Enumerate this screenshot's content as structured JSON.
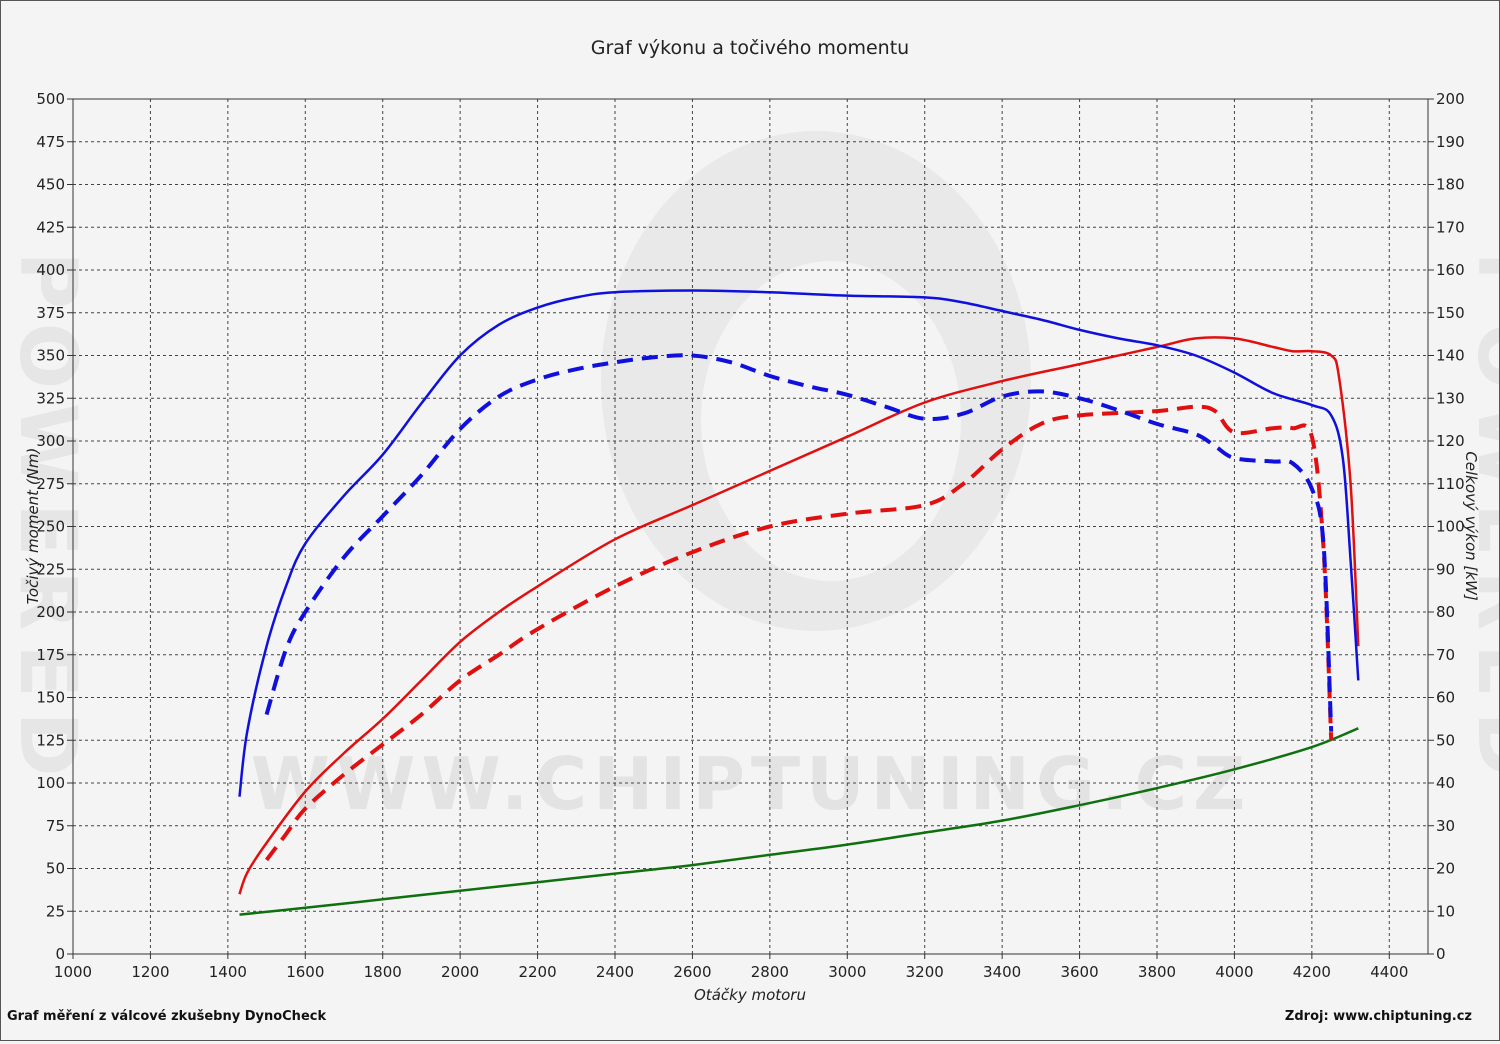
{
  "chart_data": {
    "type": "line",
    "title": "Graf výkonu a točivého momentu",
    "xlabel": "Otáčky motoru",
    "ylabel_left": "Točivý moment (Nm)",
    "ylabel_right": "Celkový výkon [kW]",
    "xlim": [
      1000,
      4500
    ],
    "ylim_left": [
      0,
      500
    ],
    "ylim_right": [
      0,
      200
    ],
    "x_ticks": [
      1000,
      1200,
      1400,
      1600,
      1800,
      2000,
      2200,
      2400,
      2600,
      2800,
      3000,
      3200,
      3400,
      3600,
      3800,
      4000,
      4200,
      4400
    ],
    "y_left_ticks": [
      0,
      25,
      50,
      75,
      100,
      125,
      150,
      175,
      200,
      225,
      250,
      275,
      300,
      325,
      350,
      375,
      400,
      425,
      450,
      475,
      500
    ],
    "y_right_ticks": [
      0,
      10,
      20,
      30,
      40,
      50,
      60,
      70,
      80,
      90,
      100,
      110,
      120,
      130,
      140,
      150,
      160,
      170,
      180,
      190,
      200
    ],
    "grid": true,
    "colors": {
      "torque": "#1010dd",
      "power": "#e01010",
      "losses": "#107010"
    },
    "series": [
      {
        "key": "torque_tuned",
        "axis": "left",
        "color": "#1010dd",
        "dash": "none",
        "points": [
          [
            1430,
            92
          ],
          [
            1450,
            130
          ],
          [
            1500,
            180
          ],
          [
            1550,
            215
          ],
          [
            1600,
            240
          ],
          [
            1700,
            268
          ],
          [
            1800,
            292
          ],
          [
            1900,
            322
          ],
          [
            2000,
            350
          ],
          [
            2100,
            368
          ],
          [
            2200,
            378
          ],
          [
            2300,
            384
          ],
          [
            2400,
            387
          ],
          [
            2600,
            388
          ],
          [
            2800,
            387
          ],
          [
            3000,
            385
          ],
          [
            3200,
            384
          ],
          [
            3300,
            381
          ],
          [
            3400,
            376
          ],
          [
            3500,
            371
          ],
          [
            3600,
            365
          ],
          [
            3700,
            360
          ],
          [
            3800,
            356
          ],
          [
            3900,
            350
          ],
          [
            4000,
            340
          ],
          [
            4100,
            328
          ],
          [
            4200,
            321
          ],
          [
            4250,
            315
          ],
          [
            4280,
            290
          ],
          [
            4300,
            230
          ],
          [
            4320,
            160
          ]
        ]
      },
      {
        "key": "torque_stock",
        "axis": "left",
        "color": "#1010dd",
        "dash": "dashed",
        "points": [
          [
            1500,
            140
          ],
          [
            1550,
            178
          ],
          [
            1600,
            200
          ],
          [
            1700,
            232
          ],
          [
            1800,
            256
          ],
          [
            1900,
            280
          ],
          [
            2000,
            307
          ],
          [
            2100,
            326
          ],
          [
            2200,
            336
          ],
          [
            2300,
            342
          ],
          [
            2400,
            346
          ],
          [
            2500,
            349
          ],
          [
            2600,
            350
          ],
          [
            2700,
            346
          ],
          [
            2800,
            338
          ],
          [
            2900,
            332
          ],
          [
            3000,
            327
          ],
          [
            3100,
            320
          ],
          [
            3200,
            313
          ],
          [
            3300,
            316
          ],
          [
            3400,
            326
          ],
          [
            3500,
            329
          ],
          [
            3600,
            325
          ],
          [
            3700,
            318
          ],
          [
            3800,
            310
          ],
          [
            3900,
            304
          ],
          [
            3950,
            297
          ],
          [
            4000,
            290
          ],
          [
            4100,
            288
          ],
          [
            4150,
            287
          ],
          [
            4200,
            272
          ],
          [
            4230,
            240
          ],
          [
            4250,
            130
          ]
        ]
      },
      {
        "key": "power_tuned",
        "axis": "right",
        "color": "#e01010",
        "dash": "none",
        "points": [
          [
            1430,
            14
          ],
          [
            1450,
            19
          ],
          [
            1500,
            26
          ],
          [
            1600,
            38
          ],
          [
            1700,
            47
          ],
          [
            1800,
            55
          ],
          [
            1900,
            64
          ],
          [
            2000,
            73
          ],
          [
            2100,
            80
          ],
          [
            2200,
            86
          ],
          [
            2400,
            97
          ],
          [
            2600,
            105
          ],
          [
            2800,
            113
          ],
          [
            3000,
            121
          ],
          [
            3200,
            129
          ],
          [
            3400,
            134
          ],
          [
            3600,
            138
          ],
          [
            3800,
            142
          ],
          [
            3900,
            144
          ],
          [
            4000,
            144
          ],
          [
            4100,
            142
          ],
          [
            4150,
            141
          ],
          [
            4200,
            141
          ],
          [
            4250,
            140
          ],
          [
            4270,
            135
          ],
          [
            4300,
            110
          ],
          [
            4320,
            72
          ]
        ]
      },
      {
        "key": "power_stock",
        "axis": "right",
        "color": "#e01010",
        "dash": "dashed",
        "points": [
          [
            1500,
            22
          ],
          [
            1550,
            28
          ],
          [
            1600,
            34
          ],
          [
            1700,
            42
          ],
          [
            1800,
            49
          ],
          [
            1900,
            56
          ],
          [
            2000,
            64
          ],
          [
            2100,
            70
          ],
          [
            2200,
            76
          ],
          [
            2400,
            86
          ],
          [
            2600,
            94
          ],
          [
            2800,
            100
          ],
          [
            3000,
            103
          ],
          [
            3200,
            105
          ],
          [
            3300,
            110
          ],
          [
            3400,
            118
          ],
          [
            3500,
            124
          ],
          [
            3600,
            126
          ],
          [
            3800,
            127
          ],
          [
            3900,
            128
          ],
          [
            3950,
            127
          ],
          [
            4000,
            122
          ],
          [
            4100,
            123
          ],
          [
            4150,
            123
          ],
          [
            4200,
            121
          ],
          [
            4230,
            95
          ],
          [
            4250,
            50
          ]
        ]
      },
      {
        "key": "losses",
        "axis": "left",
        "color": "#107010",
        "dash": "none",
        "points": [
          [
            1430,
            23
          ],
          [
            1600,
            27
          ],
          [
            1800,
            32
          ],
          [
            2000,
            37
          ],
          [
            2200,
            42
          ],
          [
            2400,
            47
          ],
          [
            2600,
            52
          ],
          [
            2800,
            58
          ],
          [
            3000,
            64
          ],
          [
            3200,
            71
          ],
          [
            3400,
            78
          ],
          [
            3600,
            87
          ],
          [
            3800,
            97
          ],
          [
            4000,
            108
          ],
          [
            4200,
            121
          ],
          [
            4320,
            132
          ]
        ]
      }
    ]
  },
  "footer": {
    "left": "Graf měření z válcové zkušebny DynoCheck",
    "right": "Zdroj: www.chiptuning.cz"
  },
  "watermark": {
    "center": "WWW.CHIPTUNING.CZ",
    "side": "POWERED"
  }
}
